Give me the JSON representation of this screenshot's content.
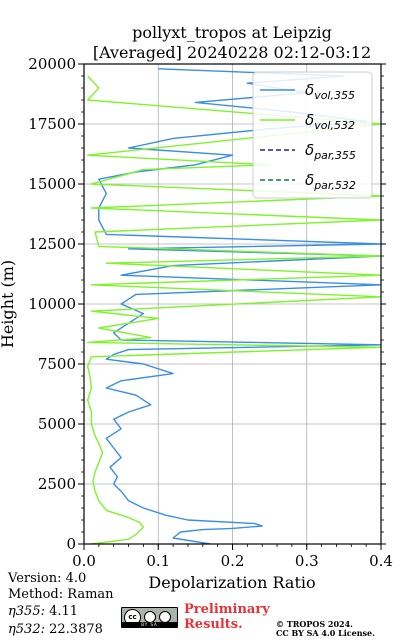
{
  "chart_data": {
    "type": "line",
    "title": [
      "pollyxt_tropos at Leipzig",
      "[Averaged] 20240228 02:12-03:12"
    ],
    "xlabel": "Depolarization Ratio",
    "ylabel": "Height (m)",
    "xlim": [
      0,
      0.4
    ],
    "ylim": [
      0,
      20000
    ],
    "xticks": [
      "0.0",
      "0.1",
      "0.2",
      "0.3",
      "0.4"
    ],
    "yticks": [
      "0",
      "2500",
      "5000",
      "7500",
      "10000",
      "12500",
      "15000",
      "17500",
      "20000"
    ],
    "grid": true,
    "legend_position": "top-right",
    "legend": [
      {
        "base": "δ",
        "sub": "vol,355",
        "color": "#3a8ee6",
        "dash": "solid"
      },
      {
        "base": "δ",
        "sub": "vol,532",
        "color": "#7ef42b",
        "dash": "solid"
      },
      {
        "base": "δ",
        "sub": "par,355",
        "color": "#1f1fa8",
        "dash": "dashed"
      },
      {
        "base": "δ",
        "sub": "par,532",
        "color": "#0e7a3e",
        "dash": "dashed"
      }
    ],
    "series": [
      {
        "name": "δvol,355",
        "color": "#3a8ee6",
        "points": [
          [
            0.17,
            0
          ],
          [
            0.12,
            250
          ],
          [
            0.13,
            500
          ],
          [
            0.16,
            600
          ],
          [
            0.2,
            650
          ],
          [
            0.24,
            750
          ],
          [
            0.23,
            850
          ],
          [
            0.14,
            1000
          ],
          [
            0.11,
            1200
          ],
          [
            0.08,
            1500
          ],
          [
            0.06,
            1800
          ],
          [
            0.05,
            2200
          ],
          [
            0.04,
            2500
          ],
          [
            0.045,
            2800
          ],
          [
            0.035,
            3200
          ],
          [
            0.05,
            3600
          ],
          [
            0.04,
            4000
          ],
          [
            0.03,
            4400
          ],
          [
            0.05,
            4800
          ],
          [
            0.04,
            5200
          ],
          [
            0.06,
            5500
          ],
          [
            0.09,
            5800
          ],
          [
            0.07,
            6200
          ],
          [
            0.03,
            6500
          ],
          [
            0.05,
            6800
          ],
          [
            0.12,
            7100
          ],
          [
            0.08,
            7500
          ],
          [
            0.03,
            7700
          ],
          [
            0.04,
            7900
          ],
          [
            0.06,
            8100
          ],
          [
            0.4,
            8300
          ],
          [
            0.05,
            8500
          ],
          [
            0.04,
            8800
          ],
          [
            0.06,
            9200
          ],
          [
            0.08,
            9600
          ],
          [
            0.05,
            10000
          ],
          [
            0.07,
            10400
          ],
          [
            0.4,
            10800
          ],
          [
            0.05,
            11200
          ],
          [
            0.12,
            11600
          ],
          [
            0.4,
            12000
          ],
          [
            0.06,
            12300
          ],
          [
            0.4,
            12500
          ],
          [
            0.03,
            12900
          ],
          [
            0.02,
            13500
          ],
          [
            0.02,
            14000
          ],
          [
            0.03,
            14600
          ],
          [
            0.02,
            15200
          ],
          [
            0.07,
            15500
          ],
          [
            0.15,
            15800
          ],
          [
            0.2,
            16200
          ],
          [
            0.06,
            16500
          ],
          [
            0.12,
            16900
          ],
          [
            0.25,
            17300
          ],
          [
            0.38,
            17600
          ],
          [
            0.28,
            18000
          ],
          [
            0.15,
            18400
          ],
          [
            0.3,
            18800
          ],
          [
            0.22,
            19200
          ],
          [
            0.35,
            19500
          ],
          [
            0.1,
            19800
          ]
        ]
      },
      {
        "name": "δvol,532",
        "color": "#7ef42b",
        "points": [
          [
            0.01,
            0
          ],
          [
            0.06,
            200
          ],
          [
            0.07,
            400
          ],
          [
            0.08,
            700
          ],
          [
            0.075,
            900
          ],
          [
            0.06,
            1100
          ],
          [
            0.03,
            1400
          ],
          [
            0.02,
            1800
          ],
          [
            0.015,
            2200
          ],
          [
            0.012,
            2600
          ],
          [
            0.015,
            3000
          ],
          [
            0.02,
            3400
          ],
          [
            0.025,
            3800
          ],
          [
            0.02,
            4200
          ],
          [
            0.015,
            4500
          ],
          [
            0.01,
            5000
          ],
          [
            0.01,
            5500
          ],
          [
            0.005,
            6000
          ],
          [
            0.01,
            6500
          ],
          [
            0.008,
            7000
          ],
          [
            0.005,
            7400
          ],
          [
            0.01,
            7800
          ],
          [
            0.4,
            8200
          ],
          [
            0.005,
            8400
          ],
          [
            0.09,
            8600
          ],
          [
            0.02,
            9000
          ],
          [
            0.1,
            9400
          ],
          [
            0.01,
            9700
          ],
          [
            0.4,
            10300
          ],
          [
            0.01,
            10800
          ],
          [
            0.4,
            11200
          ],
          [
            0.03,
            11700
          ],
          [
            0.4,
            12000
          ],
          [
            0.02,
            12400
          ],
          [
            0.015,
            13000
          ],
          [
            0.4,
            13500
          ],
          [
            0.01,
            14000
          ],
          [
            0.4,
            14500
          ],
          [
            0.01,
            15000
          ],
          [
            0.08,
            15600
          ],
          [
            0.25,
            15800
          ],
          [
            0.005,
            16200
          ],
          [
            0.4,
            17500
          ],
          [
            0.005,
            18500
          ],
          [
            0.02,
            19000
          ],
          [
            0.005,
            19500
          ]
        ]
      }
    ],
    "annotations": {
      "version": "Version: 4.0",
      "method": "Method: Raman",
      "eta355_label": "η355:",
      "eta355_value": "4.11",
      "eta532_label": "η532:",
      "eta532_value": "22.3878",
      "prelim_line1": "Preliminary",
      "prelim_line2": "Results.",
      "copyright_line1": "© TROPOS 2024.",
      "copyright_line2": "CC BY SA 4.0 License.",
      "cc_badge_text": "cc",
      "cc_strip": "BY SA"
    }
  }
}
